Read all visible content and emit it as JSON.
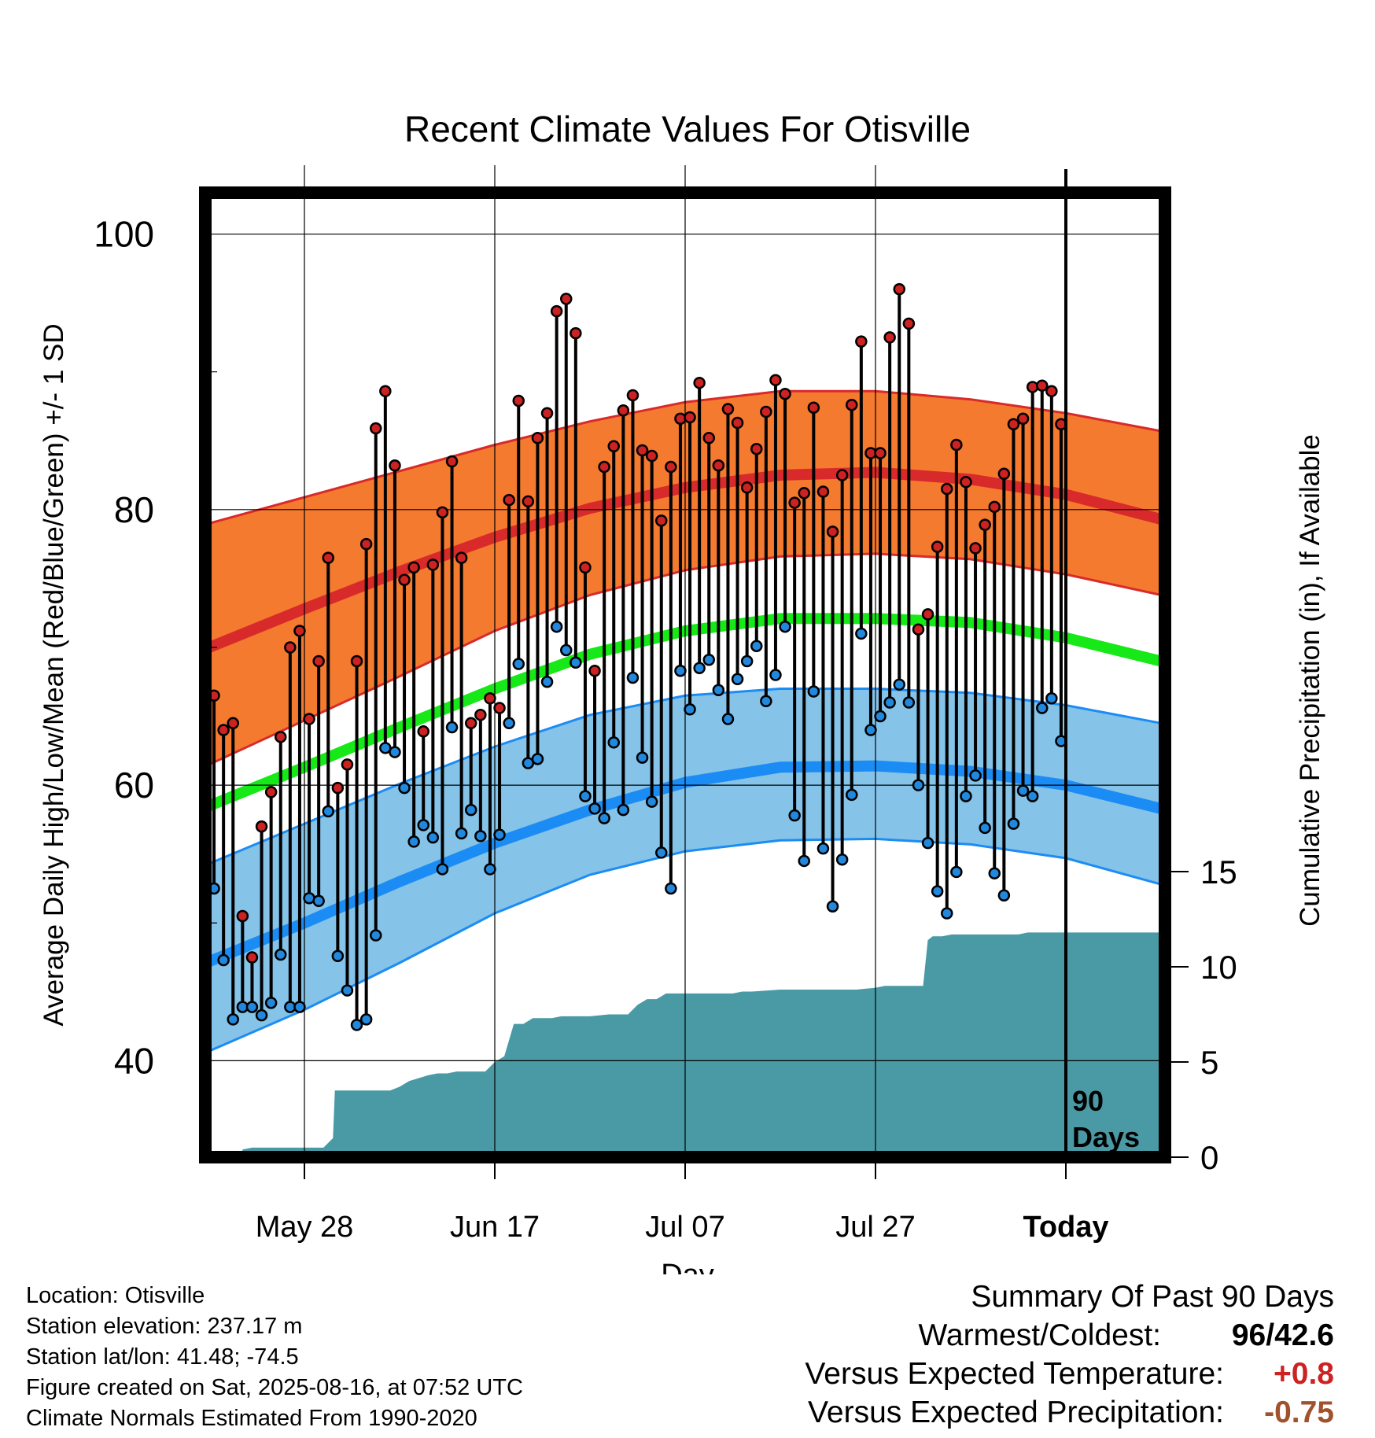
{
  "chart_data": {
    "type": "line",
    "title": "Recent Climate Values For Otisville",
    "xlabel": "Day",
    "ylabel": "Average Daily High/Low/Mean (Red/Blue/Green) +/- 1 SD",
    "y2label": "Cumulative Precipitation (in), If Available",
    "x_tick_labels": [
      "May 28",
      "Jun 17",
      "Jul 07",
      "Jul 27",
      "Today"
    ],
    "x_tick_days": [
      10,
      30,
      50,
      70,
      90
    ],
    "xlim": [
      0,
      100
    ],
    "ylim": [
      33,
      103
    ],
    "y_ticks": [
      40,
      60,
      80,
      100
    ],
    "y2lim": [
      0,
      20
    ],
    "y2_ticks": [
      0,
      5,
      10,
      15
    ],
    "today_marker": "90\nDays",
    "today_label_line1": "90",
    "today_label_line2": "Days",
    "normals": {
      "days": [
        0,
        10,
        20,
        30,
        40,
        50,
        60,
        70,
        80,
        90,
        100
      ],
      "high_mean": [
        70,
        72.8,
        75.5,
        78,
        80.1,
        81.6,
        82.5,
        82.7,
        82.2,
        81.1,
        79.3
      ],
      "high_upper": [
        79,
        80.9,
        82.8,
        84.7,
        86.4,
        87.8,
        88.6,
        88.6,
        88,
        87,
        85.7
      ],
      "high_lower": [
        61.5,
        64.7,
        67.9,
        71.2,
        73.8,
        75.6,
        76.6,
        76.8,
        76.4,
        75.3,
        73.8
      ],
      "mean": [
        58.5,
        61.3,
        64.2,
        67,
        69.5,
        71.2,
        72.1,
        72.1,
        71.8,
        70.7,
        69
      ],
      "low_mean": [
        47.2,
        50,
        53,
        55.8,
        58.2,
        60.2,
        61.3,
        61.4,
        61,
        60,
        58.3
      ],
      "low_upper": [
        54.3,
        57.2,
        60.1,
        62.8,
        65.1,
        66.5,
        67,
        67,
        66.7,
        65.8,
        64.5
      ],
      "low_lower": [
        40.7,
        43.7,
        47.1,
        50.7,
        53.5,
        55.2,
        56,
        56.1,
        55.7,
        54.7,
        52.8
      ]
    },
    "highs": [
      66.5,
      64,
      64.5,
      50.5,
      47.5,
      57,
      59.5,
      63.5,
      70,
      71.2,
      64.8,
      69,
      76.5,
      59.8,
      61.5,
      69,
      77.5,
      85.9,
      88.6,
      83.2,
      74.9,
      75.8,
      63.9,
      76,
      79.8,
      83.5,
      76.5,
      64.5,
      65.1,
      66.3,
      65.6,
      80.7,
      87.9,
      80.6,
      85.2,
      87,
      94.4,
      95.3,
      92.8,
      75.8,
      68.3,
      83.1,
      84.6,
      87.2,
      88.3,
      84.3,
      83.9,
      79.2,
      83.1,
      86.6,
      86.7,
      89.2,
      85.2,
      83.2,
      87.3,
      86.3,
      81.6,
      84.4,
      87.1,
      89.4,
      88.4,
      80.5,
      81.2,
      87.4,
      81.3,
      78.4,
      82.5,
      87.6,
      92.2,
      84.1,
      84.1,
      92.5,
      96,
      93.5,
      71.3,
      72.4,
      77.3,
      81.5,
      84.7,
      82,
      77.2,
      78.9,
      80.2,
      82.6,
      86.2,
      86.6,
      88.9,
      89,
      88.6,
      86.2
    ],
    "lows": [
      52.5,
      47.3,
      43.0,
      43.9,
      43.9,
      43.3,
      44.2,
      47.7,
      43.9,
      43.9,
      51.8,
      51.6,
      58.1,
      47.6,
      45.1,
      42.6,
      43.0,
      49.1,
      62.7,
      62.4,
      59.8,
      55.9,
      57.1,
      56.2,
      53.9,
      64.2,
      56.5,
      58.2,
      56.3,
      53.9,
      56.4,
      64.5,
      68.8,
      61.6,
      61.9,
      67.5,
      71.5,
      69.8,
      68.9,
      59.2,
      58.3,
      57.6,
      63.1,
      58.2,
      67.8,
      62,
      58.8,
      55.1,
      52.5,
      68.3,
      65.5,
      68.5,
      69.1,
      66.9,
      64.8,
      67.7,
      69,
      70.1,
      66.1,
      68,
      71.5,
      57.8,
      54.5,
      66.8,
      55.4,
      51.2,
      54.6,
      59.3,
      71,
      64,
      65,
      66,
      67.3,
      66,
      60,
      55.8,
      52.3,
      50.7,
      53.7,
      59.2,
      60.7,
      56.9,
      53.6,
      52.0,
      57.2,
      59.6,
      59.2,
      65.6,
      66.3,
      63.2
    ],
    "precip_days": [
      0,
      3.3,
      3.5,
      4.5,
      6,
      12,
      13,
      13.2,
      14,
      19,
      20,
      21,
      23,
      24,
      25,
      26,
      29,
      30,
      31,
      32,
      33,
      34,
      35,
      36,
      37,
      40,
      42,
      43,
      44,
      45,
      46,
      47,
      48,
      50,
      52,
      55,
      56,
      57,
      60,
      61,
      62,
      64,
      66,
      68,
      70,
      71,
      72,
      73,
      74,
      75,
      75.5,
      76,
      77,
      78,
      85,
      86,
      86.5,
      88,
      90,
      92,
      95,
      100
    ],
    "precip": [
      0,
      0,
      0.4,
      0.5,
      0.5,
      0.5,
      1,
      3.5,
      3.5,
      3.5,
      3.7,
      4,
      4.3,
      4.4,
      4.4,
      4.5,
      4.5,
      5,
      5.3,
      7,
      7,
      7.3,
      7.3,
      7.3,
      7.4,
      7.4,
      7.5,
      7.5,
      7.5,
      8,
      8.3,
      8.3,
      8.6,
      8.6,
      8.6,
      8.6,
      8.7,
      8.7,
      8.8,
      8.8,
      8.8,
      8.8,
      8.8,
      8.8,
      8.9,
      9,
      9,
      9,
      9,
      9,
      11.4,
      11.6,
      11.6,
      11.7,
      11.7,
      11.8,
      11.8,
      11.8,
      11.8,
      11.8,
      11.8,
      11.8
    ]
  },
  "footer": {
    "location": "Location: Otisville",
    "elevation": "Station elevation: 237.17 m",
    "latlon": "Station lat/lon: 41.48; -74.5",
    "created": "Figure created on Sat, 2025-08-16, at 07:52 UTC",
    "normals": "Climate Normals Estimated From 1990-2020"
  },
  "summary": {
    "heading": "Summary Of Past 90 Days",
    "warmest_label": "Warmest/Coldest:",
    "warmest": "96",
    "slash": "/",
    "coldest": "42.6",
    "temp_label": "Versus Expected Temperature:",
    "temp_value": "+0.8",
    "precip_label": "Versus Expected Precipitation:",
    "precip_value": "-0.75"
  },
  "colors": {
    "high_band": "#f47a2f",
    "high_line": "#d82a2a",
    "mean_line": "#17e817",
    "low_band": "#85c3e8",
    "low_line": "#1c8cf5",
    "precip_fill": "#4a9aa5",
    "high_dot": "#cc2222",
    "low_dot": "#2288dd",
    "positive": "#cc2222",
    "negative": "#a0522d"
  }
}
